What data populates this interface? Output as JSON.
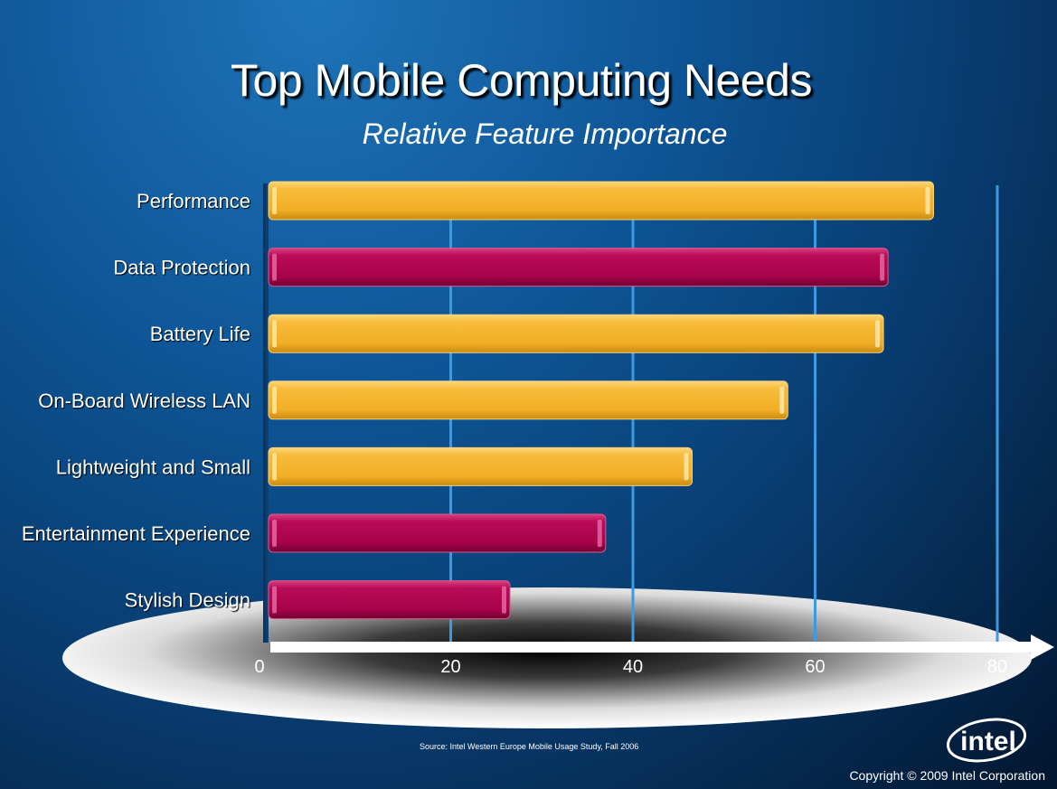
{
  "title": "Top Mobile Computing Needs",
  "subtitle": "Relative Feature Importance",
  "source": "Source:  Intel Western Europe Mobile Usage Study, Fall 2006",
  "copyright": "Copyright © 2009 Intel Corporation",
  "logo_text": "intel",
  "colors": {
    "yellow": "#f5b52e",
    "magenta": "#b0054f",
    "gridline": "#3c9ae0"
  },
  "chart_data": {
    "type": "bar",
    "orientation": "horizontal",
    "categories": [
      "Performance",
      "Data Protection",
      "Battery Life",
      "On-Board Wireless LAN",
      "Lightweight and Small",
      "Entertainment Experience",
      "Stylish Design"
    ],
    "values": [
      73,
      68,
      67.5,
      57,
      46.5,
      37,
      26.5
    ],
    "bar_colors": [
      "yellow",
      "magenta",
      "yellow",
      "yellow",
      "yellow",
      "magenta",
      "magenta"
    ],
    "xticks": [
      "0",
      "20",
      "40",
      "60",
      "80"
    ],
    "xlim": [
      0,
      80
    ],
    "grid": true
  }
}
